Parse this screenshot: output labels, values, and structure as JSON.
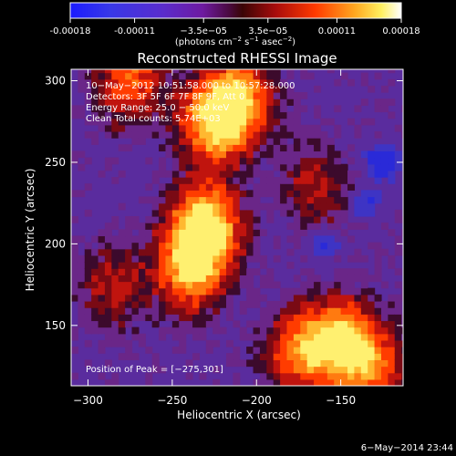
{
  "colorbar": {
    "tick_values": [
      -0.00018,
      -0.00011,
      -3.5e-05,
      3.5e-05,
      0.00011,
      0.00018
    ],
    "tick_labels": [
      "-0.00018",
      "-0.00011",
      "−3.5e−05",
      "3.5e−05",
      "0.00011",
      "0.00018"
    ],
    "units_label": "(photons cm",
    "units_exp1": "−2",
    "units_mid": " s",
    "units_exp2": "−1",
    "units_mid2": " asec",
    "units_exp3": "−2",
    "units_close": ")",
    "range": [
      -0.00018,
      0.00018
    ],
    "colormap": "rainbow-to-heat (blue-purple-red-orange-yellow-white)"
  },
  "chart_data": {
    "type": "heatmap",
    "title": "Reconstructed RHESSI Image",
    "xlabel": "Heliocentric X (arcsec)",
    "ylabel": "Heliocentric Y (arcsec)",
    "xlim": [
      -310,
      -113
    ],
    "ylim": [
      113,
      307
    ],
    "x_ticks": [
      -300,
      -250,
      -200,
      -150
    ],
    "x_tick_labels": [
      "−300",
      "−250",
      "−200",
      "−150"
    ],
    "y_ticks": [
      150,
      200,
      250,
      300
    ],
    "y_tick_labels": [
      "150",
      "200",
      "250",
      "300"
    ],
    "annotations": [
      "10−May−2012 10:51:58.000 to 10:57:28.000",
      "Detectors: 3F 5F 6F 7F 8F 9F, Att 0",
      "Energy Range: 25.0 − 50.0 keV",
      "Clean      Total counts: 5.74E+03"
    ],
    "peak_label": "Position of Peak = [−275,301]",
    "peak_position": [
      -275,
      301
    ],
    "emission_regions": [
      {
        "x": -230,
        "y": 210,
        "intensity": 1.0
      },
      {
        "x": -225,
        "y": 275,
        "intensity": 0.85
      },
      {
        "x": -210,
        "y": 290,
        "intensity": 0.7
      },
      {
        "x": -240,
        "y": 185,
        "intensity": 0.75
      },
      {
        "x": -150,
        "y": 140,
        "intensity": 0.85
      },
      {
        "x": -175,
        "y": 135,
        "intensity": 0.6
      },
      {
        "x": -130,
        "y": 125,
        "intensity": 0.55
      },
      {
        "x": -275,
        "y": 300,
        "intensity": 0.6
      },
      {
        "x": -285,
        "y": 175,
        "intensity": 0.35
      },
      {
        "x": -165,
        "y": 235,
        "intensity": 0.35
      }
    ],
    "negative_regions": [
      {
        "x": -125,
        "y": 250,
        "intensity": 0.9
      },
      {
        "x": -160,
        "y": 200,
        "intensity": 0.4
      },
      {
        "x": -135,
        "y": 225,
        "intensity": 0.4
      }
    ]
  },
  "footer_date": "6−May−2014 23:44"
}
